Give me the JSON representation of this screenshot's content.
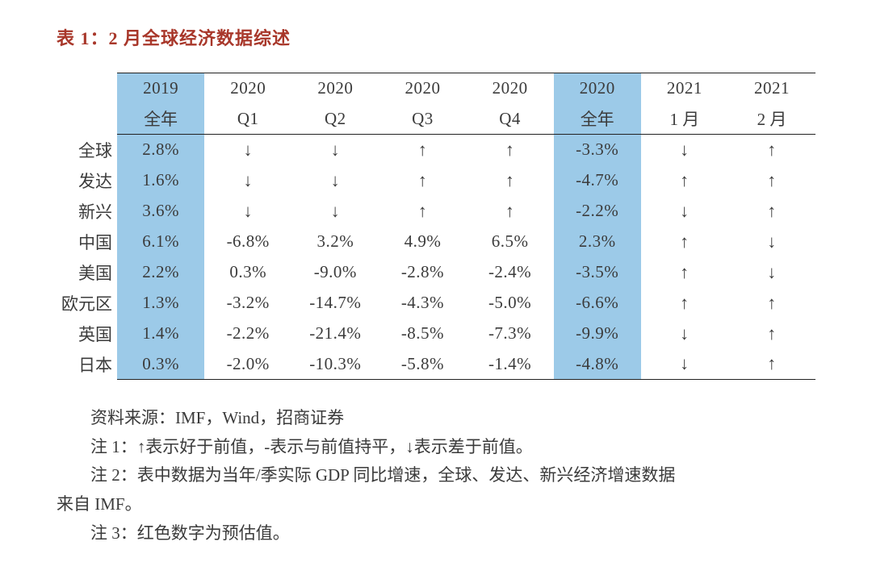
{
  "title": "表 1：2 月全球经济数据综述",
  "columns": {
    "h1": [
      "2019",
      "2020",
      "2020",
      "2020",
      "2020",
      "2020",
      "2021",
      "2021"
    ],
    "h2": [
      "全年",
      "Q1",
      "Q2",
      "Q3",
      "Q4",
      "全年",
      "1 月",
      "2 月"
    ]
  },
  "highlighted_cols": [
    0,
    5
  ],
  "row_labels": [
    "全球",
    "发达",
    "新兴",
    "中国",
    "美国",
    "欧元区",
    "英国",
    "日本"
  ],
  "rows": [
    [
      "2.8%",
      "↓",
      "↓",
      "↑",
      "↑",
      "-3.3%",
      "↓",
      "↑"
    ],
    [
      "1.6%",
      "↓",
      "↓",
      "↑",
      "↑",
      "-4.7%",
      "↑",
      "↑"
    ],
    [
      "3.6%",
      "↓",
      "↓",
      "↑",
      "↑",
      "-2.2%",
      "↓",
      "↑"
    ],
    [
      "6.1%",
      "-6.8%",
      "3.2%",
      "4.9%",
      "6.5%",
      "2.3%",
      "↑",
      "↓"
    ],
    [
      "2.2%",
      "0.3%",
      "-9.0%",
      "-2.8%",
      "-2.4%",
      "-3.5%",
      "↑",
      "↓"
    ],
    [
      "1.3%",
      "-3.2%",
      "-14.7%",
      "-4.3%",
      "-5.0%",
      "-6.6%",
      "↑",
      "↑"
    ],
    [
      "1.4%",
      "-2.2%",
      "-21.4%",
      "-8.5%",
      "-7.3%",
      "-9.9%",
      "↓",
      "↑"
    ],
    [
      "0.3%",
      "-2.0%",
      "-10.3%",
      "-5.8%",
      "-1.4%",
      "-4.8%",
      "↓",
      "↑"
    ]
  ],
  "notes": {
    "source": "资料来源：IMF，Wind，招商证券",
    "n1": "注 1：↑表示好于前值，-表示与前值持平，↓表示差于前值。",
    "n2a": "注 2：表中数据为当年/季实际 GDP 同比增速，全球、发达、新兴经济增速数据",
    "n2b": "来自 IMF。",
    "n3": "注 3：红色数字为预估值。"
  },
  "styling": {
    "title_color": "#a8372a",
    "highlight_bg": "#9ccae8",
    "text_color": "#3b3b3b",
    "border_color": "#222222",
    "font_size_body": 21,
    "font_size_title": 22
  }
}
